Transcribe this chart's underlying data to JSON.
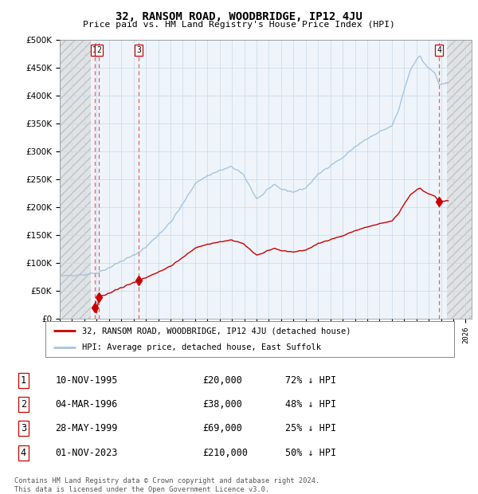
{
  "title": "32, RANSOM ROAD, WOODBRIDGE, IP12 4JU",
  "subtitle": "Price paid vs. HM Land Registry's House Price Index (HPI)",
  "ylim": [
    0,
    500000
  ],
  "yticks": [
    0,
    50000,
    100000,
    150000,
    200000,
    250000,
    300000,
    350000,
    400000,
    450000,
    500000
  ],
  "ytick_labels": [
    "£0",
    "£50K",
    "£100K",
    "£150K",
    "£200K",
    "£250K",
    "£300K",
    "£350K",
    "£400K",
    "£450K",
    "£500K"
  ],
  "xlim_start": 1993.0,
  "xlim_end": 2026.5,
  "hpi_color": "#a8c4e0",
  "price_color": "#cc0000",
  "dashed_line_color": "#e86060",
  "sale_marker_color": "#cc0000",
  "legend_label_price": "32, RANSOM ROAD, WOODBRIDGE, IP12 4JU (detached house)",
  "legend_label_hpi": "HPI: Average price, detached house, East Suffolk",
  "transactions": [
    {
      "label": "1",
      "date_num": 1995.86,
      "price": 20000,
      "hpi_pct": "72% ↓ HPI",
      "date_str": "10-NOV-1995"
    },
    {
      "label": "2",
      "date_num": 1996.17,
      "price": 38000,
      "hpi_pct": "48% ↓ HPI",
      "date_str": "04-MAR-1996"
    },
    {
      "label": "3",
      "date_num": 1999.41,
      "price": 69000,
      "hpi_pct": "25% ↓ HPI",
      "date_str": "28-MAY-1999"
    },
    {
      "label": "4",
      "date_num": 2023.83,
      "price": 210000,
      "hpi_pct": "50% ↓ HPI",
      "date_str": "01-NOV-2023"
    }
  ],
  "footer": "Contains HM Land Registry data © Crown copyright and database right 2024.\nThis data is licensed under the Open Government Licence v3.0.",
  "hatched_region_end": 1995.5,
  "hatched_region_start2": 2024.5,
  "background_color": "#ffffff",
  "grid_color": "#c8d8e8",
  "chart_bg": "#eef4fa"
}
